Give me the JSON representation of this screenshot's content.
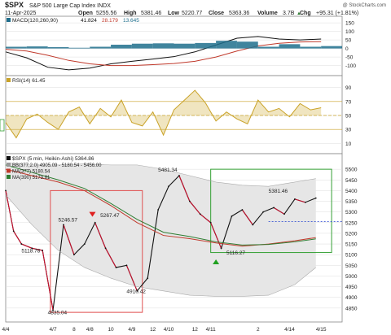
{
  "header": {
    "symbol": "$SPX",
    "name": "S&P 500 Large Cap Index INDX",
    "date": "11-Apr-2025",
    "open_label": "Open",
    "open": "5255.56",
    "high_label": "High",
    "high": "5381.46",
    "low_label": "Low",
    "low": "5220.77",
    "close_label": "Close",
    "close": "5363.36",
    "volume_label": "Volume",
    "volume": "3.7B",
    "chg_label": "Chg",
    "chg": "+95.31 (+1.81%)",
    "chg_arrow": "▲",
    "watermark": "@ StockCharts.com"
  },
  "colors": {
    "price_line": "#111111",
    "bearish": "#c8102e",
    "ma377": "#c0392b",
    "ma390": "#2e7d32",
    "bb_fill": "#e6e6e6",
    "rsi_line": "#c9a227",
    "rsi_fill": "#d4b44a",
    "macd_hist": "#1f6e8c",
    "box_red": "#e05050",
    "box_green": "#33a033",
    "ref_dashed": "#1f3fd0",
    "panel_border": "#888888",
    "grid": "#dddddd"
  },
  "chart_data": [
    {
      "type": "line",
      "panel": "MACD",
      "legend": "MACD(120,260,90)",
      "legend_values": [
        "41.824",
        "28.179",
        "13.645"
      ],
      "ylim": [
        -140,
        160
      ],
      "yticks": [
        "150",
        "100",
        "50",
        "0",
        "-50",
        "-100"
      ],
      "grid": true,
      "series": [
        {
          "name": "MACD",
          "color": "#111111",
          "x": [
            0,
            8,
            16,
            24,
            32,
            40,
            48,
            56,
            64,
            72,
            80,
            88,
            96,
            104,
            112,
            120
          ],
          "values": [
            -20,
            -55,
            -110,
            -125,
            -115,
            -90,
            -75,
            -62,
            -48,
            -20,
            20,
            60,
            70,
            55,
            50,
            55
          ]
        },
        {
          "name": "Signal",
          "color": "#c0392b",
          "x": [
            0,
            8,
            16,
            24,
            32,
            40,
            48,
            56,
            64,
            72,
            80,
            88,
            96,
            104,
            112,
            120
          ],
          "values": [
            -5,
            -15,
            -40,
            -70,
            -90,
            -100,
            -100,
            -95,
            -88,
            -75,
            -50,
            -15,
            15,
            30,
            38,
            40
          ]
        },
        {
          "name": "Histogram",
          "color": "#1f6e8c",
          "style": "histogram",
          "x": [
            0,
            8,
            16,
            24,
            32,
            40,
            48,
            56,
            64,
            72,
            80,
            88,
            96,
            104,
            112,
            120
          ],
          "values": [
            10,
            12,
            8,
            4,
            10,
            22,
            28,
            30,
            28,
            32,
            45,
            40,
            10,
            25,
            10,
            14
          ]
        }
      ]
    },
    {
      "type": "line",
      "panel": "RSI",
      "legend": "RSI(14) 61.45",
      "ylim": [
        0,
        100
      ],
      "yticks": [
        "90",
        "70",
        "50",
        "30",
        "10"
      ],
      "reference_lines": [
        70,
        50,
        30
      ],
      "grid": true,
      "series": [
        {
          "name": "RSI",
          "color": "#c9a227",
          "x": [
            0,
            4,
            8,
            12,
            16,
            20,
            24,
            28,
            32,
            36,
            40,
            44,
            48,
            52,
            56,
            60,
            64,
            68,
            72,
            76,
            80,
            84,
            88,
            92,
            96,
            100,
            104,
            108,
            112,
            116,
            120
          ],
          "values": [
            40,
            18,
            45,
            52,
            40,
            30,
            55,
            62,
            38,
            60,
            48,
            72,
            40,
            35,
            55,
            22,
            58,
            72,
            86,
            68,
            42,
            55,
            45,
            38,
            72,
            55,
            60,
            48,
            67,
            58,
            61
          ]
        }
      ]
    },
    {
      "type": "line",
      "panel": "Price",
      "legend": "$SPX (5 min, Heikin-Ashi) 5364.86",
      "legend_items": [
        {
          "label": "BB(377,2.0) 4905.09 - 5180.54 - 5456.00",
          "color": "#999999"
        },
        {
          "label": "MA(377) 5180.54",
          "color": "#c0392b"
        },
        {
          "label": "MA(390) 5173.81",
          "color": "#2e7d32"
        }
      ],
      "ylim": [
        4800,
        5550
      ],
      "yticks": [
        "5500",
        "5450",
        "5400",
        "5350",
        "5300",
        "5250",
        "5200",
        "5150",
        "5100",
        "5050",
        "5000",
        "4950",
        "4900",
        "4850"
      ],
      "x_labels": [
        "4/4",
        "4/7",
        "8",
        "4/8",
        "10",
        "4/9",
        "12",
        "4/10",
        "12",
        "4/11",
        "2",
        "4/14",
        "4/15"
      ],
      "annotations": [
        "5481.34",
        "5381.46",
        "5246.57",
        "5267.47",
        "5118.78",
        "5116.27",
        "4910.42",
        "4835.04"
      ],
      "grid": true,
      "series": [
        {
          "name": "$SPX",
          "color": "#111111",
          "x": [
            0,
            3,
            6,
            10,
            14,
            18,
            22,
            26,
            30,
            34,
            38,
            42,
            46,
            50,
            54,
            58,
            62,
            66,
            70,
            74,
            78,
            82,
            86,
            90,
            94,
            98,
            102,
            106,
            110,
            114,
            118
          ],
          "values": [
            5400,
            5210,
            5150,
            5130,
            5120,
            4840,
            5240,
            5100,
            5150,
            5250,
            5130,
            5040,
            5050,
            4930,
            4990,
            5310,
            5420,
            5470,
            5350,
            5290,
            5250,
            5130,
            5280,
            5310,
            5240,
            5300,
            5320,
            5290,
            5360,
            5345,
            5365
          ]
        },
        {
          "name": "MA(377)",
          "color": "#c0392b",
          "x": [
            0,
            10,
            20,
            30,
            40,
            50,
            60,
            70,
            80,
            90,
            100,
            110,
            118
          ],
          "values": [
            5500,
            5470,
            5440,
            5400,
            5330,
            5250,
            5190,
            5175,
            5155,
            5140,
            5150,
            5165,
            5180
          ]
        },
        {
          "name": "MA(390)",
          "color": "#2e7d32",
          "x": [
            0,
            10,
            20,
            30,
            40,
            50,
            60,
            70,
            80,
            90,
            100,
            110,
            118
          ],
          "values": [
            5520,
            5485,
            5450,
            5410,
            5340,
            5265,
            5205,
            5185,
            5160,
            5145,
            5148,
            5160,
            5174
          ]
        },
        {
          "name": "BB upper",
          "color": "#999999",
          "x": [
            0,
            10,
            20,
            30,
            40,
            50,
            60,
            70,
            80,
            90,
            100,
            110,
            118
          ],
          "values": [
            5530,
            5520,
            5520,
            5525,
            5520,
            5520,
            5500,
            5470,
            5440,
            5425,
            5420,
            5440,
            5456
          ]
        },
        {
          "name": "BB lower",
          "color": "#999999",
          "x": [
            0,
            10,
            20,
            30,
            40,
            50,
            60,
            70,
            80,
            90,
            100,
            110,
            118
          ],
          "values": [
            5380,
            5240,
            5120,
            5040,
            4990,
            4950,
            4930,
            4910,
            4905,
            4905,
            4910,
            4960,
            5040
          ]
        }
      ]
    }
  ]
}
